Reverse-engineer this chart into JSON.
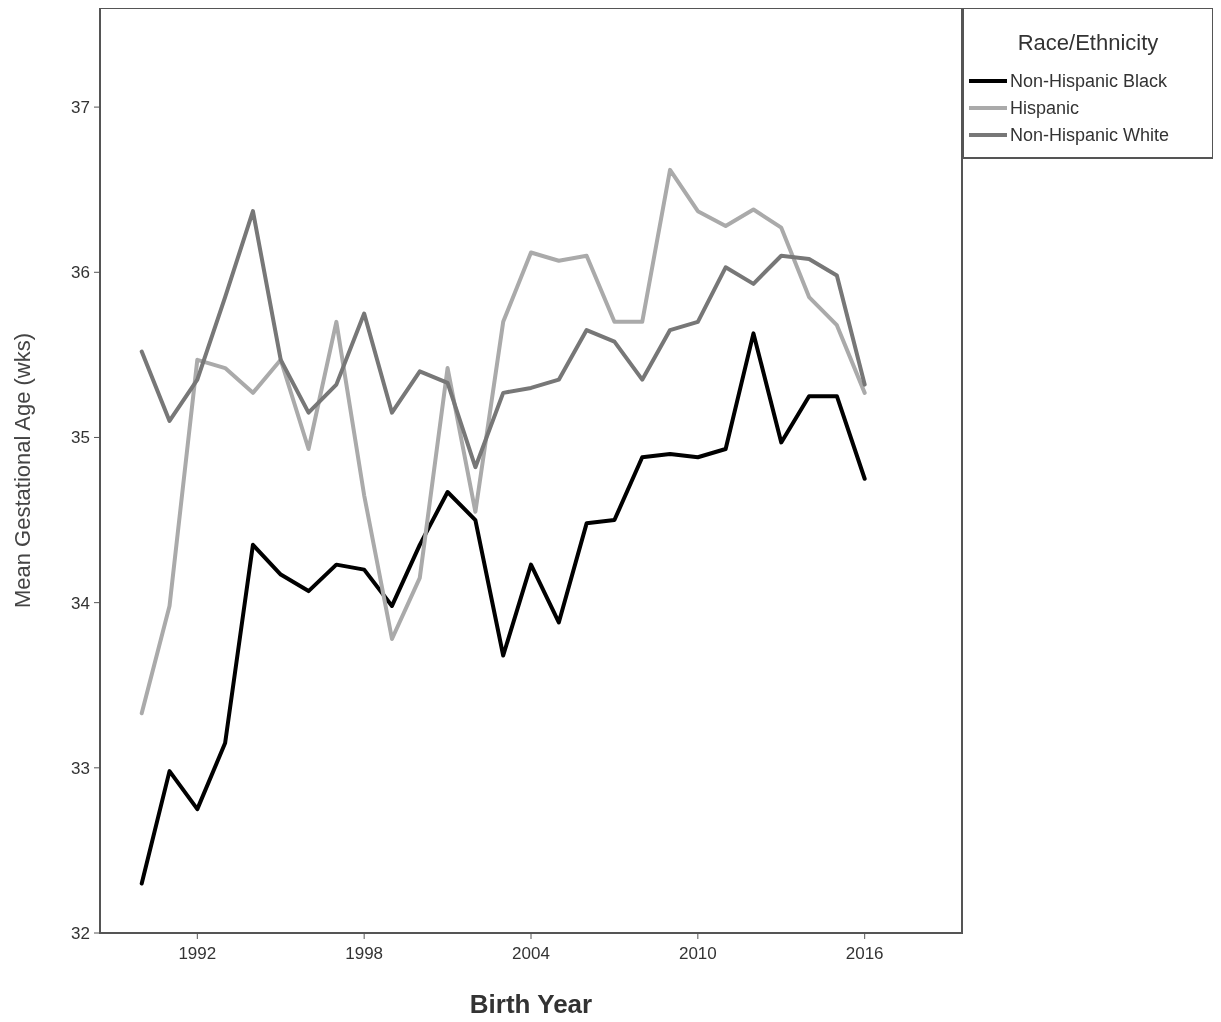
{
  "chart_data": {
    "type": "line",
    "xlabel": "Birth Year",
    "ylabel": "Mean Gestational Age (wks)",
    "legend_title": "Race/Ethnicity",
    "legend": "top right",
    "grid": false,
    "line_style": "solid",
    "marker": "none",
    "x": [
      1990,
      1991,
      1992,
      1993,
      1994,
      1995,
      1996,
      1997,
      1998,
      1999,
      2000,
      2001,
      2002,
      2003,
      2004,
      2005,
      2006,
      2007,
      2008,
      2009,
      2010,
      2011,
      2012,
      2013,
      2014,
      2015,
      2016
    ],
    "xlim": [
      1988.5,
      2019.5
    ],
    "xticks": [
      1992,
      1998,
      2004,
      2010,
      2016
    ],
    "ylim": [
      32,
      37.6
    ],
    "yticks": [
      32,
      33,
      34,
      35,
      36,
      37
    ],
    "series": [
      {
        "name": "Non-Hispanic Black",
        "color": "#000000",
        "values": [
          32.3,
          32.98,
          32.75,
          33.15,
          34.35,
          34.17,
          34.07,
          34.23,
          34.2,
          33.98,
          34.35,
          34.67,
          34.5,
          33.68,
          34.23,
          33.88,
          34.48,
          34.5,
          34.88,
          34.9,
          34.88,
          34.93,
          35.63,
          34.97,
          35.25,
          35.25,
          34.75
        ]
      },
      {
        "name": "Hispanic",
        "color": "#aaaaaa",
        "values": [
          33.33,
          33.98,
          35.47,
          35.42,
          35.27,
          35.47,
          34.93,
          35.7,
          34.65,
          33.78,
          34.15,
          35.42,
          34.55,
          35.7,
          36.12,
          36.07,
          36.1,
          35.7,
          35.7,
          36.62,
          36.37,
          36.28,
          36.38,
          36.27,
          35.85,
          35.68,
          35.27
        ]
      },
      {
        "name": "Non-Hispanic White",
        "color": "#777777",
        "values": [
          35.52,
          35.1,
          35.35,
          35.85,
          36.37,
          35.47,
          35.15,
          35.32,
          35.75,
          35.15,
          35.4,
          35.33,
          34.82,
          35.27,
          35.3,
          35.35,
          35.65,
          35.58,
          35.35,
          35.65,
          35.7,
          36.03,
          35.93,
          36.1,
          36.08,
          35.98,
          35.32
        ]
      }
    ]
  }
}
